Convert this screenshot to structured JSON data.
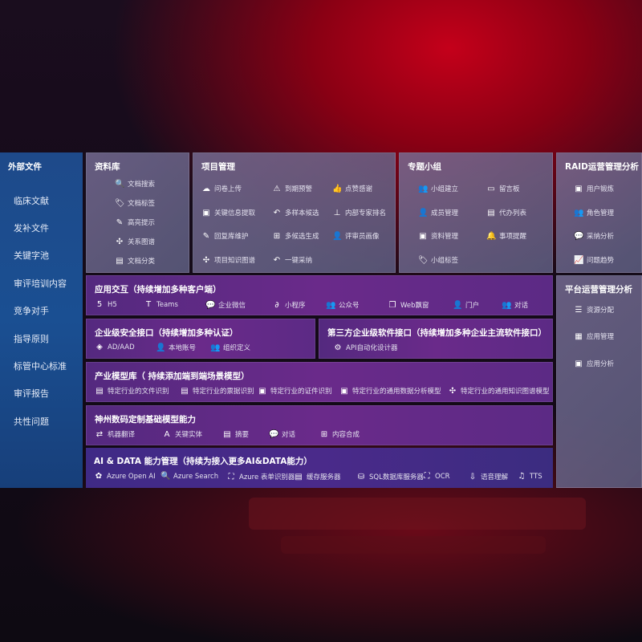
{
  "sidebar": {
    "title": "外部文件",
    "items": [
      "临床文献",
      "发补文件",
      "关键字池",
      "审评培训内容",
      "竞争对手",
      "指导原则",
      "标管中心标准",
      "审评报告",
      "共性问题"
    ]
  },
  "panels": {
    "library": {
      "title": "资料库",
      "items": [
        {
          "label": "文档搜索",
          "icon": "doc-search-icon",
          "glyph": "🔍"
        },
        {
          "label": "文档标签",
          "icon": "tag-icon",
          "glyph": "🏷"
        },
        {
          "label": "高亮提示",
          "icon": "pen-icon",
          "glyph": "✎"
        },
        {
          "label": "关系图谱",
          "icon": "graph-icon",
          "glyph": "✣"
        },
        {
          "label": "文档分类",
          "icon": "doc-class-icon",
          "glyph": "▤"
        }
      ]
    },
    "project": {
      "title": "项目管理",
      "items": [
        {
          "label": "问卷上传",
          "icon": "cloud-upload-icon",
          "glyph": "☁"
        },
        {
          "label": "到期预警",
          "icon": "alarm-icon",
          "glyph": "⚠"
        },
        {
          "label": "点赞感谢",
          "icon": "thumbs-up-icon",
          "glyph": "👍"
        },
        {
          "label": "关键信息提取",
          "icon": "window-icon",
          "glyph": "▣"
        },
        {
          "label": "多样本候选",
          "icon": "reply-icon",
          "glyph": "↶"
        },
        {
          "label": "内部专家排名",
          "icon": "ranking-icon",
          "glyph": "⊥"
        },
        {
          "label": "回复库维护",
          "icon": "edit-icon",
          "glyph": "✎"
        },
        {
          "label": "多候选生成",
          "icon": "puzzle-icon",
          "glyph": "⊞"
        },
        {
          "label": "评审员画像",
          "icon": "user-icon",
          "glyph": "👤"
        },
        {
          "label": "项目知识图谱",
          "icon": "graph-icon",
          "glyph": "✣"
        },
        {
          "label": "一键采纳",
          "icon": "reply-icon",
          "glyph": "↶"
        }
      ]
    },
    "group": {
      "title": "专题小组",
      "items": [
        {
          "label": "小组建立",
          "icon": "group-icon",
          "glyph": "👥"
        },
        {
          "label": "留言板",
          "icon": "bbs-icon",
          "glyph": "▭"
        },
        {
          "label": "成员管理",
          "icon": "member-icon",
          "glyph": "👤"
        },
        {
          "label": "代办列表",
          "icon": "clipboard-icon",
          "glyph": "▤"
        },
        {
          "label": "资料管理",
          "icon": "folder-icon",
          "glyph": "▣"
        },
        {
          "label": "事项提醒",
          "icon": "bell-icon",
          "glyph": "🔔"
        },
        {
          "label": "小组标签",
          "icon": "tag-icon",
          "glyph": "🏷"
        }
      ]
    },
    "raid": {
      "title": "RAID运营管理分析",
      "items": [
        {
          "label": "用户锻炼",
          "icon": "id-card-icon",
          "glyph": "▣"
        },
        {
          "label": "角色管理",
          "icon": "group-icon",
          "glyph": "👥"
        },
        {
          "label": "采纳分析",
          "icon": "qa-icon",
          "glyph": "💬"
        },
        {
          "label": "问题趋势",
          "icon": "trend-icon",
          "glyph": "📈"
        }
      ]
    },
    "platform": {
      "title": "平台运营管理分析",
      "items": [
        {
          "label": "资源分配",
          "icon": "checklist-icon",
          "glyph": "☰"
        },
        {
          "label": "应用管理",
          "icon": "apps-icon",
          "glyph": "▦"
        },
        {
          "label": "应用分析",
          "icon": "analysis-icon",
          "glyph": "▣"
        }
      ]
    },
    "interaction": {
      "title": "应用交互（持续增加多种客户端）",
      "items": [
        {
          "label": "H5",
          "icon": "html5-icon",
          "glyph": "5"
        },
        {
          "label": "Teams",
          "icon": "teams-icon",
          "glyph": "T"
        },
        {
          "label": "企业微信",
          "icon": "wecom-icon",
          "glyph": "💬"
        },
        {
          "label": "小程序",
          "icon": "miniprogram-icon",
          "glyph": "∂"
        },
        {
          "label": "公众号",
          "icon": "official-account-icon",
          "glyph": "👥"
        },
        {
          "label": "Web飘窗",
          "icon": "window-icon",
          "glyph": "❐"
        },
        {
          "label": "门户",
          "icon": "portal-icon",
          "glyph": "👤"
        },
        {
          "label": "对话",
          "icon": "chat-users-icon",
          "glyph": "👥"
        }
      ]
    },
    "security": {
      "title": "企业级安全接口（持续增加多种认证）",
      "items": [
        {
          "label": "AD/AAD",
          "icon": "ad-icon",
          "glyph": "◈"
        },
        {
          "label": "本地账号",
          "icon": "local-account-icon",
          "glyph": "👤"
        },
        {
          "label": "组织定义",
          "icon": "org-icon",
          "glyph": "👥"
        }
      ]
    },
    "thirdparty": {
      "title": "第三方企业级软件接口（持续增加多种企业主流软件接口）",
      "items": [
        {
          "label": "API自动化设计器",
          "icon": "api-gear-icon",
          "glyph": "⚙"
        }
      ]
    },
    "industry": {
      "title": "产业模型库（ 持续添加端到端场景模型）",
      "items": [
        {
          "label": "特定行业的文件识别",
          "icon": "file-icon",
          "glyph": "▤"
        },
        {
          "label": "特定行业的票据识别",
          "icon": "receipt-icon",
          "glyph": "▤"
        },
        {
          "label": "特定行业的证件识别",
          "icon": "id-card-icon",
          "glyph": "▣"
        },
        {
          "label": "特定行业的通用数据分析模型",
          "icon": "chart-icon",
          "glyph": "▣"
        },
        {
          "label": "特定行业的通用知识图谱模型",
          "icon": "graph-icon",
          "glyph": "✣"
        }
      ]
    },
    "foundation": {
      "title": "神州数码定制基础模型能力",
      "items": [
        {
          "label": "机器翻译",
          "icon": "translate-icon",
          "glyph": "⇄"
        },
        {
          "label": "关键实体",
          "icon": "entity-icon",
          "glyph": "A"
        },
        {
          "label": "摘要",
          "icon": "summary-icon",
          "glyph": "▤"
        },
        {
          "label": "对话",
          "icon": "chat-icon",
          "glyph": "💬"
        },
        {
          "label": "内容合成",
          "icon": "puzzle-icon",
          "glyph": "⊞"
        }
      ]
    },
    "aidata": {
      "title": "AI & DATA 能力管理（持续为接入更多AI&DATA能力）",
      "items": [
        {
          "label": "Azure Open AI",
          "icon": "openai-icon",
          "glyph": "✿"
        },
        {
          "label": "Azure Search",
          "icon": "search-doc-icon",
          "glyph": "🔍"
        },
        {
          "label": "Azure 表单识别器",
          "icon": "form-recognizer-icon",
          "glyph": "⛶"
        },
        {
          "label": "缓存服务器",
          "icon": "cache-server-icon",
          "glyph": "▤"
        },
        {
          "label": "SQL数据库服务器",
          "icon": "database-icon",
          "glyph": "⛁"
        },
        {
          "label": "OCR",
          "icon": "ocr-icon",
          "glyph": "⛶"
        },
        {
          "label": "语音理解",
          "icon": "speech-icon",
          "glyph": "⇩"
        },
        {
          "label": "TTS",
          "icon": "tts-icon",
          "glyph": "♫"
        }
      ]
    }
  }
}
